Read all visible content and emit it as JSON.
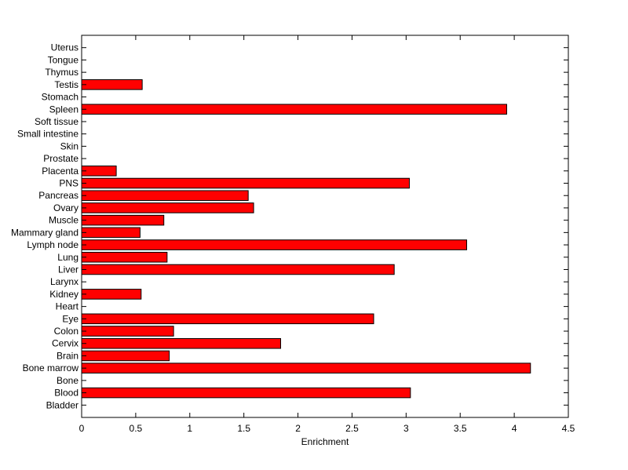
{
  "chart_data": {
    "type": "bar",
    "orientation": "horizontal",
    "categories": [
      "Bladder",
      "Blood",
      "Bone",
      "Bone marrow",
      "Brain",
      "Cervix",
      "Colon",
      "Eye",
      "Heart",
      "Kidney",
      "Larynx",
      "Liver",
      "Lung",
      "Lymph node",
      "Mammary gland",
      "Muscle",
      "Ovary",
      "Pancreas",
      "PNS",
      "Placenta",
      "Prostate",
      "Skin",
      "Small intestine",
      "Soft tissue",
      "Spleen",
      "Stomach",
      "Testis",
      "Thymus",
      "Tongue",
      "Uterus"
    ],
    "values": [
      0,
      3.04,
      0,
      4.15,
      0.81,
      1.84,
      0.85,
      2.7,
      0,
      0.55,
      0,
      2.89,
      0.79,
      3.56,
      0.54,
      0.76,
      1.59,
      1.54,
      3.03,
      0.32,
      0,
      0,
      0,
      0,
      3.93,
      0,
      0.56,
      0,
      0,
      0
    ],
    "xlabel": "Enrichment",
    "ylabel": "",
    "title": "",
    "xlim": [
      0,
      4.5
    ],
    "xticks": [
      "0",
      "0.5",
      "1",
      "1.5",
      "2",
      "2.5",
      "3",
      "3.5",
      "4",
      "4.5"
    ],
    "grid": false,
    "bar_color": "#ff0000",
    "edge_color": "#000000"
  }
}
